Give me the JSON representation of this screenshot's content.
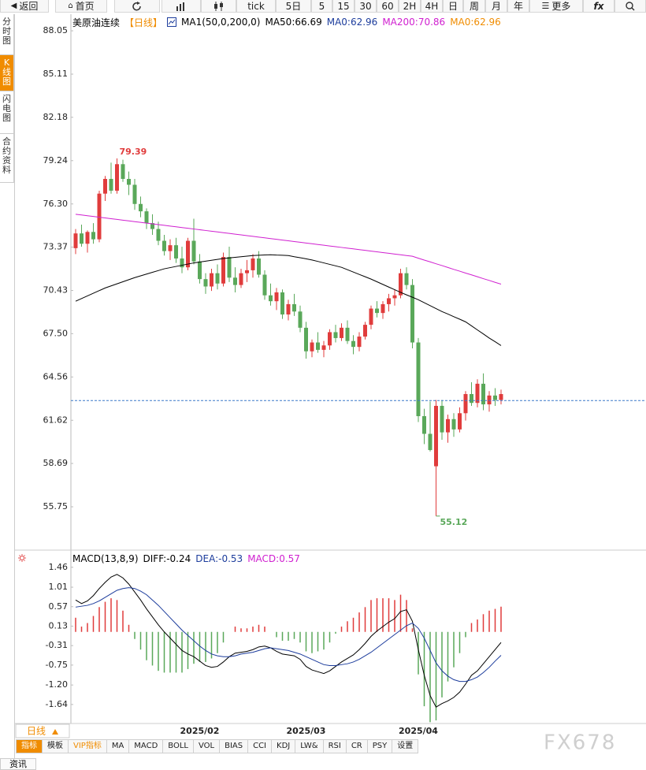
{
  "toolbar": {
    "items": [
      "返回",
      "首页",
      "tick",
      "5日",
      "5",
      "15",
      "30",
      "60",
      "2H",
      "4H",
      "日",
      "周",
      "月",
      "年",
      "更多",
      "fx"
    ]
  },
  "sidebar": {
    "tabs": [
      "分时图",
      "K线图",
      "闪电图",
      "合约资料"
    ]
  },
  "chart_data": [
    {
      "type": "candlestick",
      "title": "美原油连续",
      "period": "【日线】",
      "indicator": "MA1(50,0,200,0)",
      "title_color": "#000000",
      "period_color": "#f08c00",
      "legend": [
        {
          "text": "MA50:66.69",
          "color": "#000000"
        },
        {
          "text": "MA0:62.96",
          "color": "#1c3c9c"
        },
        {
          "text": "MA200:70.86",
          "color": "#d020d0"
        },
        {
          "text": "MA0:62.96",
          "color": "#f08c00"
        }
      ],
      "categories": [
        null,
        null,
        null,
        null,
        null,
        null,
        null,
        null,
        null,
        null,
        null,
        null,
        null,
        null,
        null,
        null,
        null,
        null,
        null,
        null,
        null,
        "2025/02",
        null,
        null,
        null,
        null,
        null,
        null,
        null,
        null,
        null,
        null,
        null,
        null,
        null,
        null,
        null,
        null,
        null,
        "2025/03",
        null,
        null,
        null,
        null,
        null,
        null,
        null,
        null,
        null,
        null,
        null,
        null,
        null,
        null,
        null,
        null,
        null,
        null,
        "2025/04",
        null,
        null,
        null,
        null,
        null,
        null,
        null,
        null,
        null,
        null,
        null,
        null,
        null,
        null
      ],
      "open": [
        73.3,
        74.3,
        73.6,
        74.4,
        73.9,
        77.0,
        78.0,
        77.2,
        79.0,
        78.0,
        77.6,
        76.3,
        75.8,
        75.0,
        74.6,
        73.8,
        73.1,
        73.5,
        72.6,
        72.0,
        73.8,
        72.4,
        71.2,
        70.7,
        71.6,
        70.9,
        72.7,
        71.3,
        70.8,
        71.6,
        71.8,
        72.6,
        71.5,
        70.1,
        69.7,
        70.3,
        68.8,
        69.5,
        69.0,
        67.9,
        66.3,
        66.9,
        66.4,
        66.7,
        67.6,
        67.2,
        67.9,
        67.0,
        66.6,
        67.3,
        68.1,
        69.2,
        68.9,
        69.5,
        69.9,
        70.1,
        71.6,
        70.8,
        66.9,
        61.9,
        60.7,
        58.5,
        62.6,
        60.8,
        61.7,
        61.0,
        62.1,
        63.4,
        62.8,
        64.1,
        62.7,
        63.3,
        63.0
      ],
      "high": [
        74.6,
        74.9,
        74.5,
        75.0,
        77.2,
        78.2,
        79.1,
        79.39,
        79.3,
        78.5,
        78.0,
        76.8,
        76.0,
        75.6,
        75.1,
        74.2,
        73.9,
        74.0,
        73.4,
        74.0,
        75.3,
        72.9,
        71.6,
        71.9,
        72.2,
        73.0,
        73.4,
        72.0,
        71.9,
        72.5,
        72.9,
        73.1,
        71.8,
        70.9,
        70.6,
        70.5,
        69.8,
        70.2,
        69.4,
        68.3,
        67.1,
        67.6,
        67.0,
        67.8,
        68.1,
        68.2,
        68.4,
        67.4,
        67.6,
        68.3,
        69.4,
        69.7,
        69.7,
        70.2,
        70.5,
        71.9,
        72.0,
        71.2,
        67.2,
        62.4,
        62.9,
        63.0,
        63.0,
        62.0,
        62.1,
        62.5,
        63.6,
        64.2,
        64.4,
        64.8,
        63.6,
        63.8,
        63.7
      ],
      "low": [
        72.9,
        73.4,
        73.0,
        73.6,
        73.7,
        76.5,
        77.0,
        77.0,
        77.8,
        76.9,
        75.9,
        75.4,
        74.6,
        74.2,
        73.5,
        72.8,
        72.5,
        72.3,
        71.6,
        71.8,
        72.2,
        70.9,
        70.2,
        70.4,
        70.5,
        70.7,
        71.0,
        70.3,
        70.6,
        71.0,
        71.3,
        71.3,
        69.8,
        69.4,
        69.1,
        68.5,
        68.4,
        68.7,
        67.6,
        65.8,
        65.9,
        66.2,
        65.9,
        66.4,
        66.9,
        67.0,
        66.8,
        66.1,
        66.3,
        67.1,
        67.8,
        68.6,
        68.5,
        69.0,
        69.4,
        69.9,
        70.5,
        66.5,
        61.5,
        60.0,
        59.5,
        55.12,
        60.3,
        60.1,
        60.5,
        60.8,
        61.6,
        62.6,
        62.5,
        62.3,
        62.2,
        62.6,
        62.7
      ],
      "close": [
        74.3,
        73.6,
        74.4,
        73.9,
        77.0,
        78.0,
        77.2,
        79.0,
        78.0,
        77.6,
        76.3,
        75.8,
        75.0,
        74.6,
        73.8,
        73.1,
        73.5,
        72.6,
        72.0,
        73.8,
        72.4,
        71.2,
        70.7,
        71.6,
        70.9,
        72.7,
        71.3,
        70.8,
        71.6,
        71.8,
        72.6,
        71.5,
        70.1,
        69.7,
        70.3,
        68.8,
        69.5,
        69.0,
        67.9,
        66.3,
        66.9,
        66.4,
        66.7,
        67.6,
        67.2,
        67.9,
        67.0,
        66.6,
        67.3,
        68.1,
        69.2,
        68.9,
        69.5,
        69.9,
        70.1,
        71.6,
        70.8,
        66.9,
        61.9,
        60.7,
        59.6,
        62.6,
        60.8,
        61.7,
        61.0,
        62.1,
        63.4,
        62.8,
        64.1,
        62.7,
        63.3,
        63.0,
        63.4
      ],
      "up_color": "#e03c3c",
      "down_color": "#5aa85a",
      "lines": [
        {
          "color": "#000000",
          "values": [
            69.7,
            69.88,
            70.06,
            70.24,
            70.42,
            70.6,
            70.74,
            70.88,
            71.02,
            71.16,
            71.3,
            71.42,
            71.54,
            71.66,
            71.78,
            71.9,
            71.98,
            72.06,
            72.14,
            72.22,
            72.3,
            72.36,
            72.42,
            72.48,
            72.54,
            72.6,
            72.64,
            72.68,
            72.72,
            72.76,
            72.8,
            72.82,
            72.84,
            72.85,
            72.83,
            72.82,
            72.8,
            72.72,
            72.65,
            72.58,
            72.5,
            72.4,
            72.3,
            72.2,
            72.1,
            72.0,
            71.84,
            71.68,
            71.52,
            71.36,
            71.2,
            71.02,
            70.84,
            70.66,
            70.48,
            70.3,
            70.13,
            69.97,
            69.8,
            69.6,
            69.4,
            69.2,
            69.0,
            68.83,
            68.65,
            68.48,
            68.3,
            68.03,
            67.75,
            67.48,
            67.2,
            66.95,
            66.69
          ]
        },
        {
          "color": "#d020d0",
          "values": [
            75.6,
            75.55,
            75.5,
            75.45,
            75.4,
            75.35,
            75.3,
            75.25,
            75.2,
            75.15,
            75.1,
            75.05,
            75.0,
            74.95,
            74.9,
            74.85,
            74.8,
            74.75,
            74.7,
            74.65,
            74.6,
            74.55,
            74.5,
            74.45,
            74.4,
            74.35,
            74.3,
            74.25,
            74.2,
            74.15,
            74.1,
            74.05,
            74.0,
            73.95,
            73.9,
            73.85,
            73.8,
            73.75,
            73.7,
            73.65,
            73.6,
            73.55,
            73.5,
            73.45,
            73.4,
            73.35,
            73.3,
            73.25,
            73.2,
            73.15,
            73.1,
            73.05,
            73.0,
            72.95,
            72.9,
            72.85,
            72.8,
            72.75,
            72.62,
            72.49,
            72.37,
            72.24,
            72.12,
            71.99,
            71.86,
            71.74,
            71.61,
            71.49,
            71.36,
            71.23,
            71.11,
            70.98,
            70.86
          ]
        }
      ],
      "ref_line": {
        "value": 62.96,
        "color": "#3a78c8",
        "dashed": true
      },
      "max_label": {
        "text": "79.39",
        "color": "#e03c3c"
      },
      "min_label": {
        "text": "55.12",
        "color": "#5aa85a"
      },
      "ylim": [
        52.81,
        89.07
      ],
      "yticks": [
        88.05,
        85.11,
        82.18,
        79.24,
        {
          "value": 76.3,
          "label": "76.30"
        },
        73.37,
        70.43,
        {
          "value": 67.5,
          "label": "67.50"
        },
        64.56,
        61.62,
        58.69,
        55.75
      ]
    },
    {
      "type": "macd",
      "title": "MACD(13,8,9)",
      "legend": [
        {
          "text": "DIFF:-0.24",
          "color": "#000000"
        },
        {
          "text": "DEA:-0.53",
          "color": "#1c3c9c"
        },
        {
          "text": "MACD:0.57",
          "color": "#d020d0"
        }
      ],
      "diff": {
        "color": "#000000",
        "values": [
          0.72,
          0.64,
          0.7,
          0.82,
          0.98,
          1.12,
          1.24,
          1.3,
          1.22,
          1.08,
          0.9,
          0.72,
          0.52,
          0.34,
          0.16,
          0,
          -0.14,
          -0.28,
          -0.42,
          -0.5,
          -0.56,
          -0.66,
          -0.76,
          -0.8,
          -0.78,
          -0.68,
          -0.56,
          -0.48,
          -0.46,
          -0.44,
          -0.4,
          -0.34,
          -0.32,
          -0.36,
          -0.44,
          -0.5,
          -0.52,
          -0.54,
          -0.62,
          -0.78,
          -0.86,
          -0.9,
          -0.94,
          -0.88,
          -0.78,
          -0.68,
          -0.6,
          -0.52,
          -0.4,
          -0.26,
          -0.1,
          0.02,
          0.12,
          0.22,
          0.3,
          0.46,
          0.5,
          0.24,
          -0.4,
          -0.98,
          -1.44,
          -1.7,
          -1.62,
          -1.56,
          -1.48,
          -1.36,
          -1.18,
          -0.98,
          -0.88,
          -0.72,
          -0.56,
          -0.4,
          -0.24
        ]
      },
      "dea": {
        "color": "#1c3c9c",
        "values": [
          0.56,
          0.58,
          0.6,
          0.64,
          0.7,
          0.78,
          0.86,
          0.94,
          0.98,
          1.0,
          0.98,
          0.92,
          0.84,
          0.72,
          0.6,
          0.46,
          0.32,
          0.18,
          0.04,
          -0.08,
          -0.2,
          -0.32,
          -0.42,
          -0.5,
          -0.54,
          -0.56,
          -0.56,
          -0.54,
          -0.5,
          -0.48,
          -0.46,
          -0.42,
          -0.38,
          -0.36,
          -0.38,
          -0.4,
          -0.42,
          -0.46,
          -0.5,
          -0.56,
          -0.62,
          -0.68,
          -0.74,
          -0.76,
          -0.76,
          -0.74,
          -0.72,
          -0.68,
          -0.62,
          -0.54,
          -0.46,
          -0.36,
          -0.26,
          -0.16,
          -0.06,
          0.04,
          0.14,
          0.2,
          0.08,
          -0.14,
          -0.42,
          -0.7,
          -0.88,
          -1.0,
          -1.08,
          -1.12,
          -1.12,
          -1.08,
          -1.02,
          -0.92,
          -0.8,
          -0.66,
          -0.53
        ]
      },
      "histogram": {
        "up_color": "#e03c3c",
        "down_color": "#5aa85a",
        "values": [
          0.32,
          0.12,
          0.2,
          0.36,
          0.56,
          0.68,
          0.76,
          0.72,
          0.48,
          0.16,
          -0.16,
          -0.4,
          -0.64,
          -0.76,
          -0.88,
          -0.92,
          -0.92,
          -0.92,
          -0.92,
          -0.84,
          -0.72,
          -0.68,
          -0.68,
          -0.6,
          -0.48,
          -0.24,
          0,
          0.12,
          0.08,
          0.08,
          0.12,
          0.16,
          0.12,
          0,
          -0.12,
          -0.2,
          -0.2,
          -0.16,
          -0.24,
          -0.44,
          -0.48,
          -0.44,
          -0.4,
          -0.24,
          -0.04,
          0.12,
          0.24,
          0.32,
          0.44,
          0.56,
          0.72,
          0.76,
          0.76,
          0.76,
          0.72,
          0.84,
          0.72,
          0.08,
          -0.96,
          -1.68,
          -2.04,
          -2.0,
          -1.48,
          -1.12,
          -0.8,
          -0.48,
          -0.12,
          0.2,
          0.28,
          0.4,
          0.48,
          0.52,
          0.57
        ]
      },
      "ylim": [
        -2.07,
        1.83
      ],
      "yticks": [
        1.46,
        1.01,
        0.57,
        0.13,
        -0.31,
        -0.75,
        {
          "value": -1.2,
          "label": "-1.20"
        },
        -1.64
      ]
    }
  ],
  "period_selector": "日线",
  "indicator_tabs": [
    "指标",
    "模板",
    "VIP指标",
    "MA",
    "MACD",
    "BOLL",
    "VOL",
    "BIAS",
    "CCI",
    "KDJ",
    "LW&",
    "RSI",
    "CR",
    "PSY",
    "设置"
  ],
  "watermark": "FX678",
  "footer_tab": "资讯"
}
